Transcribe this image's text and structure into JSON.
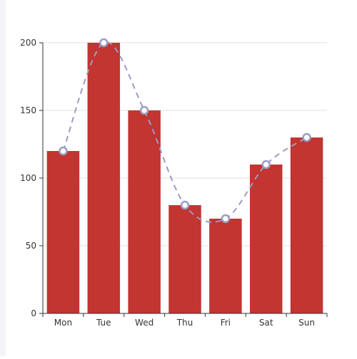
{
  "chart_data": {
    "type": "bar",
    "categories": [
      "Mon",
      "Tue",
      "Wed",
      "Thu",
      "Fri",
      "Sat",
      "Sun"
    ],
    "series": [
      {
        "type": "bar",
        "values": [
          120,
          200,
          150,
          80,
          70,
          110,
          130
        ]
      },
      {
        "type": "line",
        "smooth": true,
        "dashed": true,
        "values": [
          120,
          200,
          150,
          80,
          70,
          110,
          130
        ]
      }
    ],
    "y_ticks": [
      0,
      50,
      100,
      150,
      200
    ],
    "ylim": [
      0,
      200
    ],
    "grid": true,
    "colors": {
      "bar": "#c23531",
      "line": "#9b9cc4",
      "marker_fill": "#ffffff",
      "grid": "#e0e0e0",
      "axis": "#333333",
      "page_strip": "#f3f3f8"
    }
  }
}
